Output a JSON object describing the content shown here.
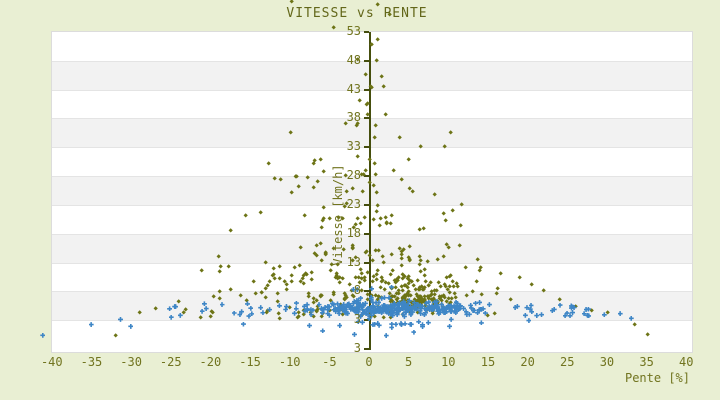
{
  "title": "VITESSE vs PENTE",
  "colors": {
    "page_bg": "#e9efd3",
    "title_text": "#63671a",
    "tick_text": "#71741f",
    "axis_line": "#454e0d",
    "band_light": "#ffffff",
    "band_dark": "#f2f2f2",
    "grid_line": "#e4e4e4",
    "series_olive": "#6d7416",
    "series_blue": "#3e86c6"
  },
  "chart_data": {
    "type": "scatter",
    "title": "VITESSE vs PENTE",
    "xlabel": "Pente [%]",
    "ylabel": "Vitesse [km/h]",
    "x_ticks": [
      -40,
      -35,
      -30,
      -25,
      -20,
      -15,
      -10,
      -5,
      0,
      5,
      10,
      15,
      20,
      25,
      30,
      35,
      40
    ],
    "y_ticks": [
      53,
      48,
      43,
      38,
      33,
      28,
      23,
      18,
      13,
      8,
      3
    ],
    "y_bottom_duplicate_label": "3",
    "xlim": [
      -40.1,
      40.6
    ],
    "ylim": [
      -2.5,
      53
    ],
    "grid": "horizontal-bands",
    "legend": "none",
    "axis_position": "y-axis drawn at x=0",
    "seed": 1337,
    "series": [
      {
        "name": "vitesse-olive",
        "marker": "diamond",
        "color": "#6d7416",
        "clusters": [
          {
            "n": 12,
            "x": [
              -2.5,
              2.5
            ],
            "y": [
              33,
              52
            ],
            "d": "u"
          },
          {
            "n": 16,
            "x": [
              -5,
              5
            ],
            "y": [
              24,
              33
            ],
            "d": "t"
          },
          {
            "n": 26,
            "x": [
              -9,
              9
            ],
            "y": [
              17,
              24
            ],
            "d": "t"
          },
          {
            "n": 40,
            "x": [
              -13,
              13
            ],
            "y": [
              12,
              17
            ],
            "d": "t"
          },
          {
            "n": 55,
            "x": [
              -17,
              17
            ],
            "y": [
              8.5,
              12
            ],
            "d": "t"
          },
          {
            "n": 75,
            "x": [
              -21,
              21
            ],
            "y": [
              5.5,
              8.5
            ],
            "d": "t"
          },
          {
            "n": 55,
            "x": [
              -26,
              26
            ],
            "y": [
              3,
              5.5
            ],
            "d": "t"
          },
          {
            "n": 95,
            "x": [
              2.5,
              11
            ],
            "y": [
              5,
              7.6
            ],
            "d": "t"
          },
          {
            "n": 38,
            "x": [
              1,
              13
            ],
            "y": [
              7.6,
              10
            ],
            "d": "t"
          },
          {
            "n": 22,
            "x": [
              -22,
              -8
            ],
            "y": [
              8,
              14
            ],
            "d": "u"
          },
          {
            "n": 14,
            "x": [
              3,
              14
            ],
            "y": [
              10,
              14
            ],
            "d": "u"
          },
          {
            "n": 12,
            "x": [
              -14,
              -4
            ],
            "y": [
              24,
              31
            ],
            "d": "u"
          },
          {
            "n": 8,
            "x": [
              4,
              12
            ],
            "y": [
              18,
              27
            ],
            "d": "u"
          }
        ],
        "points": [
          [
            -32,
            0.3
          ],
          [
            35.1,
            0.4
          ],
          [
            33.5,
            2.1
          ],
          [
            1.0,
            57.7
          ],
          [
            2.6,
            56.0
          ],
          [
            -9.8,
            58.2
          ],
          [
            -4.5,
            53.7
          ],
          [
            1.0,
            51.5
          ],
          [
            0.9,
            48.0
          ],
          [
            -0.5,
            45.5
          ],
          [
            1.8,
            43.5
          ],
          [
            -1.2,
            41
          ],
          [
            3.8,
            34.5
          ],
          [
            -10,
            35.5
          ],
          [
            9.5,
            33
          ],
          [
            6.4,
            33
          ],
          [
            10.2,
            35.4
          ],
          [
            -12,
            27.5
          ],
          [
            11.5,
            19.4
          ],
          [
            14,
            12
          ],
          [
            16.5,
            11
          ],
          [
            19,
            10.3
          ],
          [
            20.5,
            9
          ],
          [
            22,
            8
          ],
          [
            24,
            6.5
          ],
          [
            26,
            5.2
          ],
          [
            28,
            4.6
          ],
          [
            30,
            4.2
          ],
          [
            -24,
            6.2
          ],
          [
            -27,
            5
          ],
          [
            -29,
            4.2
          ],
          [
            -15.6,
            21.1
          ],
          [
            -13.7,
            21.6
          ],
          [
            -17.5,
            18.4
          ],
          [
            5,
            30.8
          ],
          [
            -7,
            30
          ],
          [
            -3,
            37
          ],
          [
            2,
            38.5
          ]
        ]
      },
      {
        "name": "vitesse-blue",
        "marker": "cross",
        "color": "#3e86c6",
        "clusters": [
          {
            "n": 150,
            "x": [
              -12,
              18
            ],
            "y": [
              3.8,
              6.6
            ],
            "d": "t"
          },
          {
            "n": 85,
            "x": [
              -7,
              14
            ],
            "y": [
              4.2,
              6.2
            ],
            "d": "t"
          },
          {
            "n": 65,
            "x": [
              -19,
              24
            ],
            "y": [
              3.2,
              6.8
            ],
            "d": "t"
          },
          {
            "n": 22,
            "x": [
              18,
              28
            ],
            "y": [
              3.8,
              6
            ],
            "d": "u"
          },
          {
            "n": 14,
            "x": [
              -27,
              -13
            ],
            "y": [
              3.4,
              6
            ],
            "d": "u"
          },
          {
            "n": 22,
            "x": [
              -9,
              12
            ],
            "y": [
              1.6,
              3.4
            ],
            "d": "t"
          },
          {
            "n": 10,
            "x": [
              -3,
              4
            ],
            "y": [
              6.6,
              9
            ],
            "d": "u"
          }
        ],
        "points": [
          [
            -41.3,
            0.45
          ],
          [
            -35.2,
            2.3
          ],
          [
            -31.5,
            3.2
          ],
          [
            -30.2,
            2.0
          ],
          [
            32.9,
            3.4
          ],
          [
            31.5,
            4.2
          ],
          [
            29.5,
            4.0
          ],
          [
            27.5,
            5.0
          ],
          [
            25.5,
            4.4
          ],
          [
            2,
            0.4
          ],
          [
            -2,
            0.6
          ],
          [
            5.5,
            1.0
          ],
          [
            -6,
            1.2
          ],
          [
            10,
            2.0
          ],
          [
            14,
            2.6
          ],
          [
            -16,
            2.4
          ],
          [
            20,
            3.0
          ]
        ]
      }
    ]
  }
}
